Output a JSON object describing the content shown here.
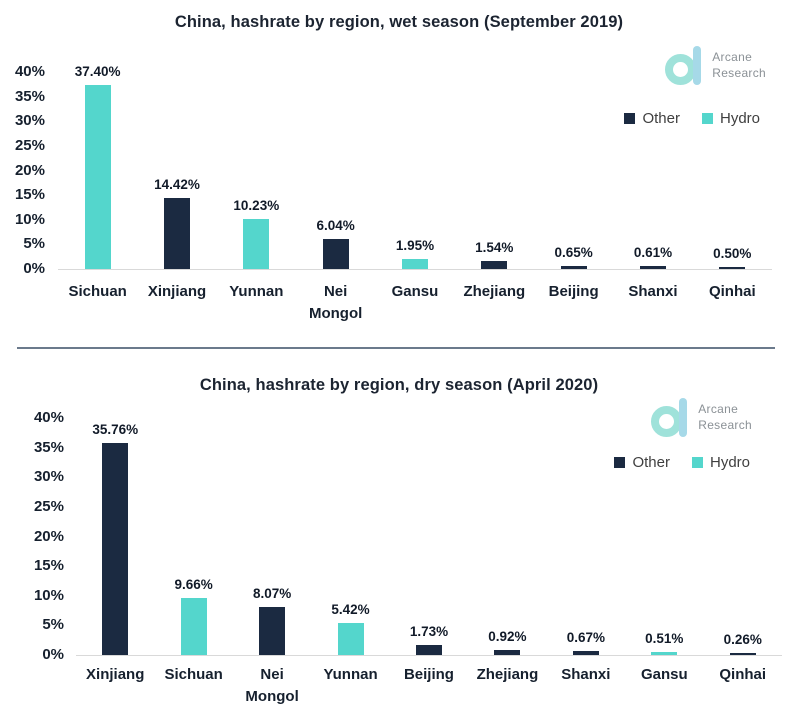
{
  "page": {
    "background": "#ffffff"
  },
  "logo": {
    "line1": "Arcane",
    "line2": "Research"
  },
  "colors": {
    "hydro": "#54d6cc",
    "other": "#1b2a41",
    "title_text": "#1c2431",
    "axis_text": "#16202e",
    "value_label_text": "#111a28",
    "legend_text": "#3f3f3f",
    "baseline": "#d9d9d9",
    "divider": "#6b7a8c",
    "logo_ring": "#9fe2da",
    "logo_stem": "#a6d9e8",
    "logo_text": "#8b9196"
  },
  "chart_data": [
    {
      "type": "bar",
      "title": "China, hashrate by region, wet season (September 2019)",
      "categories": [
        "Sichuan",
        "Xinjiang",
        "Yunnan",
        "Nei Mongol",
        "Gansu",
        "Zhejiang",
        "Beijing",
        "Shanxi",
        "Qinhai"
      ],
      "values": [
        37.4,
        14.42,
        10.23,
        6.04,
        1.95,
        1.54,
        0.65,
        0.61,
        0.5
      ],
      "value_labels": [
        "37.40%",
        "14.42%",
        "10.23%",
        "6.04%",
        "1.95%",
        "1.54%",
        "0.65%",
        "0.61%",
        "0.50%"
      ],
      "bar_series": [
        "Hydro",
        "Other",
        "Hydro",
        "Other",
        "Hydro",
        "Other",
        "Other",
        "Other",
        "Other"
      ],
      "series_colors": {
        "Other": "#1b2a41",
        "Hydro": "#54d6cc"
      },
      "legend": [
        "Other",
        "Hydro"
      ],
      "legend_position": "top-right",
      "ylim": [
        0,
        40
      ],
      "ytick_step": 5,
      "yticks": [
        "40%",
        "35%",
        "30%",
        "25%",
        "20%",
        "15%",
        "10%",
        "5%",
        "0%"
      ],
      "grid": false,
      "xlabel": "",
      "ylabel": ""
    },
    {
      "type": "bar",
      "title": "China, hashrate by region, dry season (April 2020)",
      "categories": [
        "Xinjiang",
        "Sichuan",
        "Nei Mongol",
        "Yunnan",
        "Beijing",
        "Zhejiang",
        "Shanxi",
        "Gansu",
        "Qinhai"
      ],
      "values": [
        35.76,
        9.66,
        8.07,
        5.42,
        1.73,
        0.92,
        0.67,
        0.51,
        0.26
      ],
      "value_labels": [
        "35.76%",
        "9.66%",
        "8.07%",
        "5.42%",
        "1.73%",
        "0.92%",
        "0.67%",
        "0.51%",
        "0.26%"
      ],
      "bar_series": [
        "Other",
        "Hydro",
        "Other",
        "Hydro",
        "Other",
        "Other",
        "Other",
        "Hydro",
        "Other"
      ],
      "series_colors": {
        "Other": "#1b2a41",
        "Hydro": "#54d6cc"
      },
      "legend": [
        "Other",
        "Hydro"
      ],
      "legend_position": "top-right",
      "ylim": [
        0,
        40
      ],
      "ytick_step": 5,
      "yticks": [
        "40%",
        "35%",
        "30%",
        "25%",
        "20%",
        "15%",
        "10%",
        "5%",
        "0%"
      ],
      "grid": false,
      "xlabel": "",
      "ylabel": ""
    }
  ]
}
